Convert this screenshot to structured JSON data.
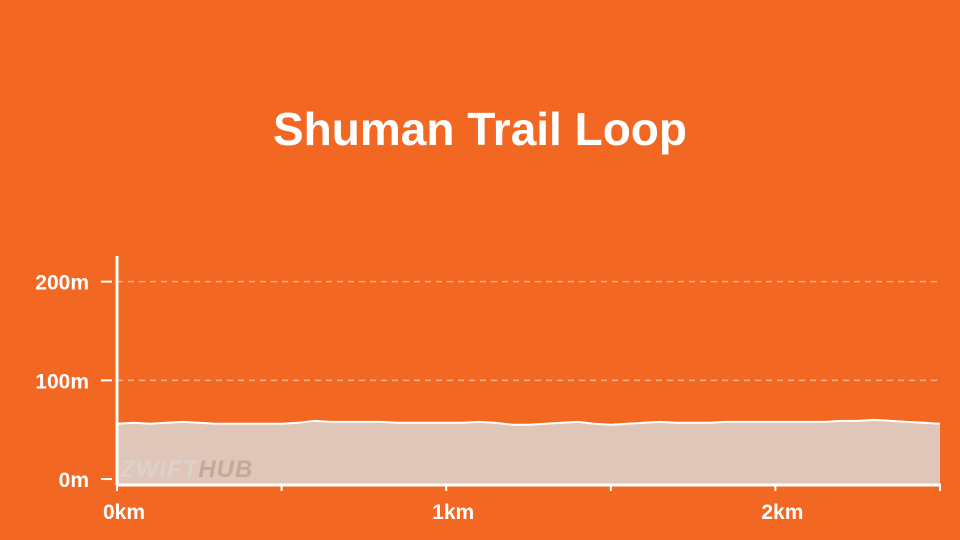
{
  "colors": {
    "background": "#f26722",
    "axis": "#ffffff",
    "grid": "#f7b08a",
    "area_fill": "#e0c6b8",
    "area_line": "#ffffff",
    "watermark": "#c3a99b"
  },
  "watermark": {
    "part1": "ZWIFT",
    "part2": "HUB"
  },
  "chart_data": {
    "type": "area",
    "title": "Shuman Trail Loop",
    "xlabel": "",
    "ylabel": "",
    "xlim": [
      0,
      2.5
    ],
    "ylim": [
      -6,
      226
    ],
    "y_ticks": [
      0,
      100,
      200
    ],
    "y_tick_labels": [
      "0m",
      "100m",
      "200m"
    ],
    "x_major_ticks": [
      0,
      1,
      2
    ],
    "x_tick_labels": [
      "0km",
      "1km",
      "2km"
    ],
    "x_minor_ticks": [
      0.5,
      1.5,
      2.5
    ],
    "grid": true,
    "series": [
      {
        "x": [
          0,
          0.05,
          0.1,
          0.15,
          0.2,
          0.25,
          0.3,
          0.35,
          0.4,
          0.45,
          0.5,
          0.55,
          0.6,
          0.65,
          0.7,
          0.75,
          0.8,
          0.85,
          0.9,
          0.95,
          1.0,
          1.05,
          1.1,
          1.15,
          1.2,
          1.25,
          1.3,
          1.35,
          1.4,
          1.45,
          1.5,
          1.55,
          1.6,
          1.65,
          1.7,
          1.75,
          1.8,
          1.85,
          1.9,
          1.95,
          2.0,
          2.05,
          2.1,
          2.15,
          2.2,
          2.25,
          2.3,
          2.35,
          2.4,
          2.45,
          2.5
        ],
        "y": [
          56,
          57,
          56,
          57,
          58,
          57,
          56,
          56,
          56,
          56,
          56,
          57,
          59,
          58,
          58,
          58,
          58,
          57,
          57,
          57,
          57,
          57,
          58,
          57,
          55,
          55,
          56,
          57,
          58,
          56,
          55,
          56,
          57,
          58,
          57,
          57,
          57,
          58,
          58,
          58,
          58,
          58,
          58,
          58,
          59,
          59,
          60,
          59,
          58,
          57,
          56
        ]
      }
    ]
  }
}
